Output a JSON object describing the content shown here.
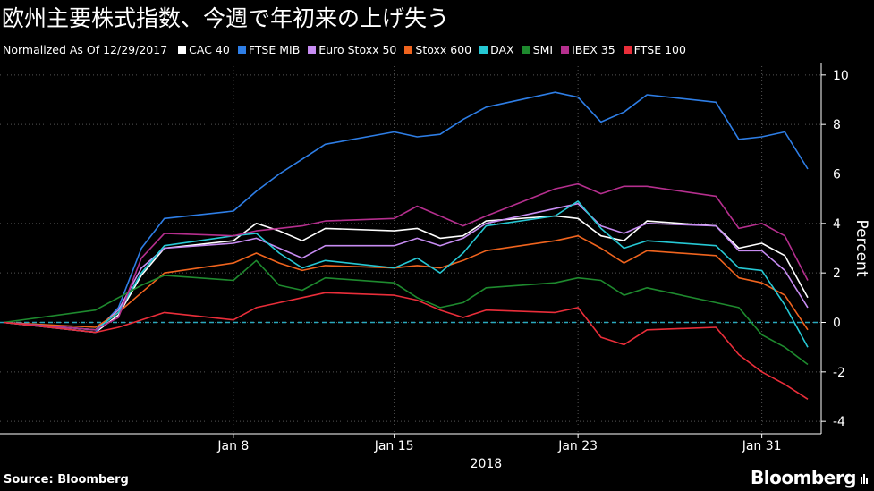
{
  "title": "欧州主要株式指数、今週で年初来の上げ失う",
  "legend_note": "Normalized As Of 12/29/2017",
  "source": "Source: Bloomberg",
  "brand": "Bloomberg",
  "chart_data": {
    "type": "line",
    "xlabel": "2018",
    "ylabel": "Percent",
    "ylim": [
      -4.5,
      10.5
    ],
    "y_ticks": [
      -4,
      -2,
      0,
      2,
      4,
      6,
      8,
      10
    ],
    "x_tick_labels": [
      {
        "label": "Jan 8",
        "date": "2018-01-08"
      },
      {
        "label": "Jan 15",
        "date": "2018-01-15"
      },
      {
        "label": "Jan 23",
        "date": "2018-01-23"
      },
      {
        "label": "Jan 31",
        "date": "2018-01-31"
      }
    ],
    "zero_line_color": "#2aa9bd",
    "grid": true,
    "dates": [
      "2017-12-29",
      "2018-01-02",
      "2018-01-03",
      "2018-01-04",
      "2018-01-05",
      "2018-01-08",
      "2018-01-09",
      "2018-01-10",
      "2018-01-11",
      "2018-01-12",
      "2018-01-15",
      "2018-01-16",
      "2018-01-17",
      "2018-01-18",
      "2018-01-19",
      "2018-01-22",
      "2018-01-23",
      "2018-01-24",
      "2018-01-25",
      "2018-01-26",
      "2018-01-29",
      "2018-01-30",
      "2018-01-31",
      "2018-02-01",
      "2018-02-02"
    ],
    "series": [
      {
        "name": "CAC 40",
        "color": "#ffffff",
        "values": [
          0,
          -0.4,
          0.3,
          1.9,
          3.0,
          3.3,
          4.0,
          3.7,
          3.3,
          3.8,
          3.7,
          3.8,
          3.4,
          3.5,
          4.1,
          4.3,
          4.2,
          3.5,
          3.3,
          4.1,
          3.9,
          3.0,
          3.2,
          2.7,
          1.0
        ]
      },
      {
        "name": "FTSE MIB",
        "color": "#2e7ee6",
        "values": [
          0,
          -0.4,
          0.6,
          3.0,
          4.2,
          4.5,
          5.3,
          6.0,
          6.6,
          7.2,
          7.7,
          7.5,
          7.6,
          8.2,
          8.7,
          9.3,
          9.1,
          8.1,
          8.5,
          9.2,
          8.9,
          7.4,
          7.5,
          7.7,
          6.2
        ]
      },
      {
        "name": "Euro Stoxx 50",
        "color": "#c78cf2",
        "values": [
          0,
          -0.3,
          0.5,
          2.2,
          3.0,
          3.2,
          3.4,
          3.0,
          2.6,
          3.1,
          3.1,
          3.4,
          3.1,
          3.4,
          4.0,
          4.6,
          4.8,
          3.9,
          3.6,
          4.0,
          3.9,
          2.9,
          2.9,
          2.1,
          0.6
        ]
      },
      {
        "name": "Stoxx 600",
        "color": "#f0641e",
        "values": [
          0,
          -0.2,
          0.4,
          1.2,
          2.0,
          2.4,
          2.8,
          2.4,
          2.1,
          2.3,
          2.2,
          2.3,
          2.2,
          2.5,
          2.9,
          3.3,
          3.5,
          3.0,
          2.4,
          2.9,
          2.7,
          1.8,
          1.6,
          1.1,
          -0.3
        ]
      },
      {
        "name": "DAX",
        "color": "#26c8d4",
        "values": [
          0,
          -0.3,
          0.4,
          2.0,
          3.1,
          3.5,
          3.6,
          2.8,
          2.2,
          2.5,
          2.2,
          2.6,
          2.0,
          2.8,
          3.9,
          4.3,
          4.9,
          3.8,
          3.0,
          3.3,
          3.1,
          2.2,
          2.1,
          0.7,
          -1.0
        ]
      },
      {
        "name": "SMI",
        "color": "#1e8a2e",
        "values": [
          0,
          0.5,
          1.0,
          1.5,
          1.9,
          1.7,
          2.5,
          1.5,
          1.3,
          1.8,
          1.6,
          1.0,
          0.6,
          0.8,
          1.4,
          1.6,
          1.8,
          1.7,
          1.1,
          1.4,
          0.8,
          0.6,
          -0.5,
          -1.0,
          -1.7
        ]
      },
      {
        "name": "IBEX 35",
        "color": "#b52f8e",
        "values": [
          0,
          -0.3,
          0.2,
          2.6,
          3.6,
          3.5,
          3.7,
          3.8,
          3.9,
          4.1,
          4.2,
          4.7,
          4.3,
          3.9,
          4.3,
          5.4,
          5.6,
          5.2,
          5.5,
          5.5,
          5.1,
          3.8,
          4.0,
          3.5,
          1.7
        ]
      },
      {
        "name": "FTSE 100",
        "color": "#ea2e3a",
        "values": [
          0,
          -0.4,
          -0.2,
          0.1,
          0.4,
          0.1,
          0.6,
          0.8,
          1.0,
          1.2,
          1.1,
          0.9,
          0.5,
          0.2,
          0.5,
          0.4,
          0.6,
          -0.6,
          -0.9,
          -0.3,
          -0.2,
          -1.3,
          -2.0,
          -2.5,
          -3.1
        ]
      }
    ]
  }
}
